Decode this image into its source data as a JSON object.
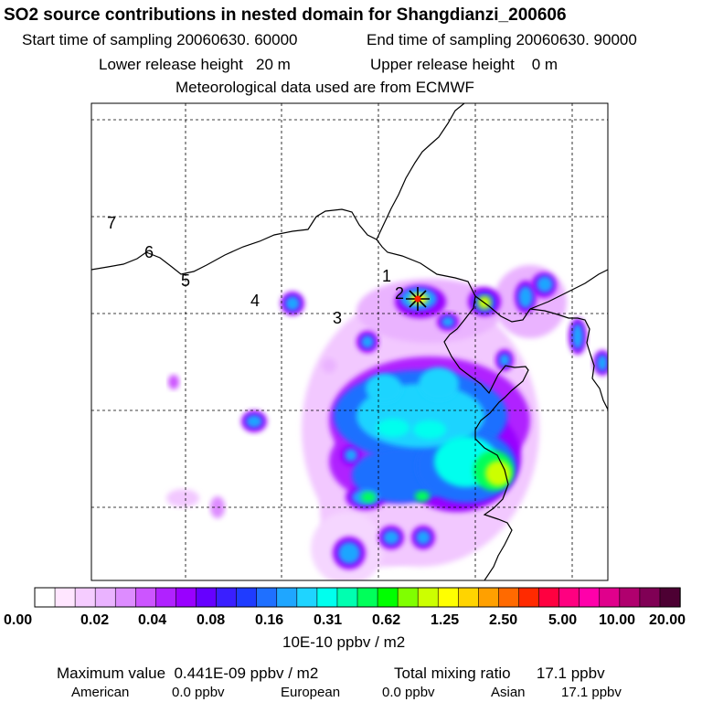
{
  "header": {
    "title": "SO2 source contributions in nested domain for Shangdianzi_200606",
    "start_label": "Start time of sampling 20060630. 60000",
    "end_label": "End time of sampling 20060630. 90000",
    "lower_label": "Lower release height   20 m",
    "upper_label": "Upper release height    0 m",
    "met_label": "Meteorological data used are from ECMWF"
  },
  "map": {
    "trajectory_labels": [
      "1",
      "2",
      "3",
      "4",
      "5",
      "6",
      "7"
    ],
    "receptor_marker": "star-icon",
    "colors": {
      "coast": "#000000",
      "grid": "#000000",
      "marker": "#000000",
      "marker_center": "#ff2000"
    }
  },
  "colorbar": {
    "colors": [
      "#ffffff",
      "#ffe6ff",
      "#f5ccff",
      "#eab3ff",
      "#dd8cff",
      "#cc55ff",
      "#b022ff",
      "#9900ff",
      "#6600ff",
      "#3a1fff",
      "#1f3cff",
      "#1f70ff",
      "#1fa6ff",
      "#1fd4ff",
      "#00ffee",
      "#00ffb0",
      "#00ff5a",
      "#00ff00",
      "#80ff00",
      "#ccff00",
      "#ffff00",
      "#ffd400",
      "#ffa000",
      "#ff6a00",
      "#ff2a00",
      "#ff0040",
      "#ff0080",
      "#ff00aa",
      "#e0008c",
      "#b0006e",
      "#800055",
      "#4d0033"
    ],
    "tick_labels": [
      "0.00",
      "0.02",
      "0.04",
      "0.08",
      "0.16",
      "0.31",
      "0.62",
      "1.25",
      "2.50",
      "5.00",
      "10.00",
      "20.00"
    ],
    "unit": "10E-10 ppbv / m2"
  },
  "footer": {
    "max_label": "Maximum value  0.441E-09 ppbv / m2",
    "total_label": "Total mixing ratio      17.1 ppbv",
    "american_label": "American",
    "american_value": "0.0 ppbv",
    "european_label": "European",
    "european_value": "0.0 ppbv",
    "asian_label": "Asian",
    "asian_value": "17.1 ppbv"
  }
}
